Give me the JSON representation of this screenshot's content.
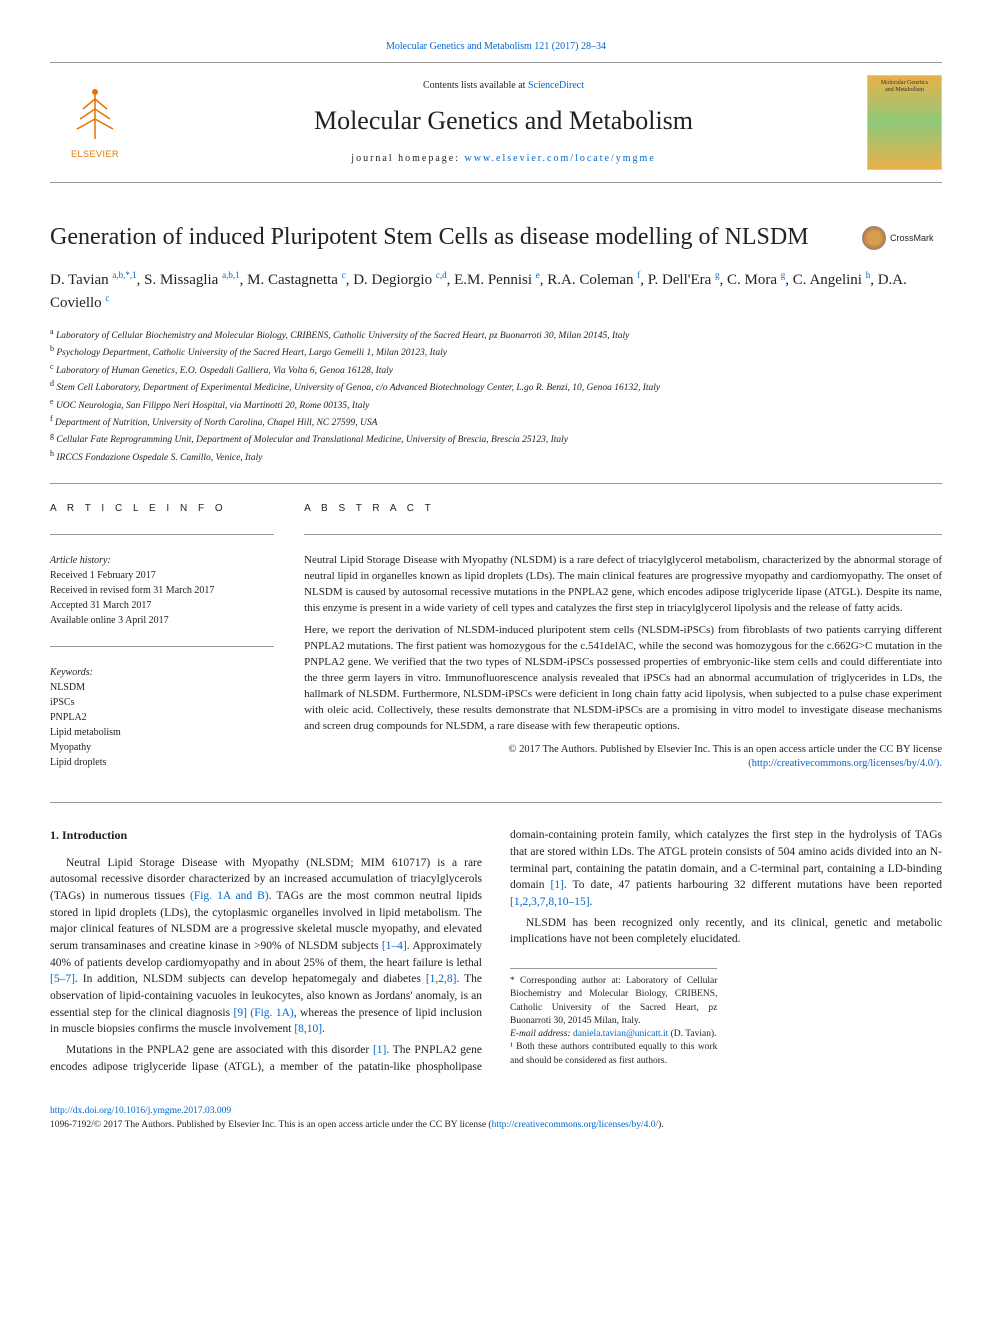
{
  "top_link": {
    "text": "Molecular Genetics and Metabolism 121 (2017) 28–34",
    "color": "#0066cc"
  },
  "publisher": {
    "name": "ELSEVIER",
    "tree_color": "#e67300"
  },
  "header": {
    "contents_prefix": "Contents lists available at ",
    "contents_link": "ScienceDirect",
    "journal_name": "Molecular Genetics and Metabolism",
    "homepage_prefix": "journal homepage: ",
    "homepage_url": "www.elsevier.com/locate/ymgme"
  },
  "cover": {
    "line1": "Molecular Genetics",
    "line2": "and Metabolism"
  },
  "article": {
    "title": "Generation of induced Pluripotent Stem Cells as disease modelling of NLSDM",
    "crossmark": "CrossMark"
  },
  "authors": [
    {
      "name": "D. Tavian",
      "marks": "a,b,*,1"
    },
    {
      "name": "S. Missaglia",
      "marks": "a,b,1"
    },
    {
      "name": "M. Castagnetta",
      "marks": "c"
    },
    {
      "name": "D. Degiorgio",
      "marks": "c,d"
    },
    {
      "name": "E.M. Pennisi",
      "marks": "e"
    },
    {
      "name": "R.A. Coleman",
      "marks": "f"
    },
    {
      "name": "P. Dell'Era",
      "marks": "g"
    },
    {
      "name": "C. Mora",
      "marks": "g"
    },
    {
      "name": "C. Angelini",
      "marks": "h"
    },
    {
      "name": "D.A. Coviello",
      "marks": "c"
    }
  ],
  "affiliations": [
    {
      "mark": "a",
      "text": "Laboratory of Cellular Biochemistry and Molecular Biology, CRIBENS, Catholic University of the Sacred Heart, pz Buonarroti 30, Milan 20145, Italy"
    },
    {
      "mark": "b",
      "text": "Psychology Department, Catholic University of the Sacred Heart, Largo Gemelli 1, Milan 20123, Italy"
    },
    {
      "mark": "c",
      "text": "Laboratory of Human Genetics, E.O. Ospedali Galliera, Via Volta 6, Genoa 16128, Italy"
    },
    {
      "mark": "d",
      "text": "Stem Cell Laboratory, Department of Experimental Medicine, University of Genoa, c/o Advanced Biotechnology Center, L.go R. Benzi, 10, Genoa 16132, Italy"
    },
    {
      "mark": "e",
      "text": "UOC Neurologia, San Filippo Neri Hospital, via Martinotti 20, Rome 00135, Italy"
    },
    {
      "mark": "f",
      "text": "Department of Nutrition, University of North Carolina, Chapel Hill, NC 27599, USA"
    },
    {
      "mark": "g",
      "text": "Cellular Fate Reprogramming Unit, Department of Molecular and Translational Medicine, University of Brescia, Brescia 25123, Italy"
    },
    {
      "mark": "h",
      "text": "IRCCS Fondazione Ospedale S. Camillo, Venice, Italy"
    }
  ],
  "article_info": {
    "label": "A R T I C L E   I N F O",
    "history_heading": "Article history:",
    "history": [
      "Received 1 February 2017",
      "Received in revised form 31 March 2017",
      "Accepted 31 March 2017",
      "Available online 3 April 2017"
    ],
    "keywords_heading": "Keywords:",
    "keywords": [
      "NLSDM",
      "iPSCs",
      "PNPLA2",
      "Lipid metabolism",
      "Myopathy",
      "Lipid droplets"
    ]
  },
  "abstract": {
    "label": "A B S T R A C T",
    "paragraphs": [
      "Neutral Lipid Storage Disease with Myopathy (NLSDM) is a rare defect of triacylglycerol metabolism, characterized by the abnormal storage of neutral lipid in organelles known as lipid droplets (LDs). The main clinical features are progressive myopathy and cardiomyopathy. The onset of NLSDM is caused by autosomal recessive mutations in the PNPLA2 gene, which encodes adipose triglyceride lipase (ATGL). Despite its name, this enzyme is present in a wide variety of cell types and catalyzes the first step in triacylglycerol lipolysis and the release of fatty acids.",
      "Here, we report the derivation of NLSDM-induced pluripotent stem cells (NLSDM-iPSCs) from fibroblasts of two patients carrying different PNPLA2 mutations. The first patient was homozygous for the c.541delAC, while the second was homozygous for the c.662G>C mutation in the PNPLA2 gene. We verified that the two types of NLSDM-iPSCs possessed properties of embryonic-like stem cells and could differentiate into the three germ layers in vitro. Immunofluorescence analysis revealed that iPSCs had an abnormal accumulation of triglycerides in LDs, the hallmark of NLSDM. Furthermore, NLSDM-iPSCs were deficient in long chain fatty acid lipolysis, when subjected to a pulse chase experiment with oleic acid. Collectively, these results demonstrate that NLSDM-iPSCs are a promising in vitro model to investigate disease mechanisms and screen drug compounds for NLSDM, a rare disease with few therapeutic options."
    ],
    "copyright": "© 2017 The Authors. Published by Elsevier Inc. This is an open access article under the CC BY license",
    "license_url": "(http://creativecommons.org/licenses/by/4.0/)."
  },
  "intro": {
    "heading": "1. Introduction",
    "paragraphs": [
      "Neutral Lipid Storage Disease with Myopathy (NLSDM; MIM 610717) is a rare autosomal recessive disorder characterized by an increased accumulation of triacylglycerols (TAGs) in numerous tissues (Fig. 1A and B). TAGs are the most common neutral lipids stored in lipid droplets (LDs), the cytoplasmic organelles involved in lipid metabolism. The major clinical features of NLSDM are a progressive skeletal muscle myopathy, and elevated serum transaminases and creatine kinase in >90% of NLSDM subjects [1–4]. Approximately 40% of patients develop cardiomyopathy and in about 25% of them, the heart failure is lethal [5–7]. In addition, NLSDM subjects can develop hepatomegaly and diabetes [1,2,8]. The observation of lipid-containing vacuoles in leukocytes, also known as Jordans' anomaly, is an essential step for the clinical diagnosis [9] (Fig. 1A), whereas the presence of lipid inclusion in muscle biopsies confirms the muscle involvement [8,10].",
      "Mutations in the PNPLA2 gene are associated with this disorder [1]. The PNPLA2 gene encodes adipose triglyceride lipase (ATGL), a member of the patatin-like phospholipase domain-containing protein family, which catalyzes the first step in the hydrolysis of TAGs that are stored within LDs. The ATGL protein consists of 504 amino acids divided into an N-terminal part, containing the patatin domain, and a C-terminal part, containing a LD-binding domain [1]. To date, 47 patients harbouring 32 different mutations have been reported [1,2,3,7,8,10–15].",
      "NLSDM has been recognized only recently, and its clinical, genetic and metabolic implications have not been completely elucidated."
    ]
  },
  "footnotes": {
    "corr_label": "* Corresponding author at: Laboratory of Cellular Biochemistry and Molecular Biology, CRIBENS, Catholic University of the Sacred Heart, pz Buonarroti 30, 20145 Milan, Italy.",
    "email_label": "E-mail address: ",
    "email": "daniela.tavian@unicatt.it",
    "email_suffix": " (D. Tavian).",
    "contrib": "¹ Both these authors contributed equally to this work and should be considered as first authors."
  },
  "footer": {
    "doi": "http://dx.doi.org/10.1016/j.ymgme.2017.03.009",
    "copyright": "1096-7192/© 2017 The Authors. Published by Elsevier Inc. This is an open access article under the CC BY license (",
    "license_url": "http://creativecommons.org/licenses/by/4.0/",
    "suffix": ")."
  },
  "colors": {
    "link": "#0066cc",
    "text": "#222222",
    "rule": "#999999",
    "publisher": "#e67300"
  }
}
